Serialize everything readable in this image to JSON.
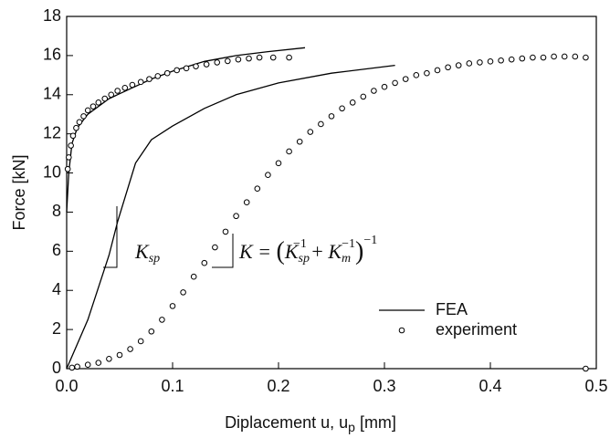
{
  "chart_data": {
    "type": "line",
    "xlabel": [
      "Diplacement u, u",
      "p",
      " [mm]"
    ],
    "ylabel": "Force [kN]",
    "xlim": [
      0,
      0.5
    ],
    "ylim": [
      0,
      18
    ],
    "xticks": [
      {
        "value": 0,
        "label": "0.0"
      },
      0.1,
      0.2,
      0.3,
      0.4,
      0.5
    ],
    "yticks": [
      0,
      2,
      4,
      6,
      8,
      10,
      12,
      14,
      16,
      18
    ],
    "legend": "lower right",
    "annotations": [
      [
        "K",
        "sp"
      ],
      [
        "K = ",
        "(",
        "K",
        "sp",
        "−1",
        " + ",
        "K",
        "m",
        "−1",
        ")",
        "−1"
      ]
    ],
    "series": [
      {
        "name": "FEA",
        "color": "#000000",
        "mode": "line",
        "x": [
          0,
          0.002,
          0.005,
          0.01,
          0.02,
          0.04,
          0.06,
          0.08,
          0.1,
          0.13,
          0.16,
          0.19,
          0.225,
          null,
          0,
          0.02,
          0.04,
          0.048,
          0.065,
          0.08,
          0.1,
          0.13,
          0.16,
          0.2,
          0.25,
          0.31
        ],
        "values": [
          8,
          10,
          11.5,
          12.3,
          13,
          13.8,
          14.3,
          14.8,
          15.2,
          15.7,
          16.0,
          16.2,
          16.4,
          null,
          0,
          2.5,
          5.8,
          7.5,
          10.5,
          11.7,
          12.4,
          13.3,
          14,
          14.6,
          15.1,
          15.5
        ]
      },
      {
        "name": "experiment",
        "color": "#000000",
        "mode": "markers",
        "x": [
          0.001,
          0.002,
          0.004,
          0.006,
          0.009,
          0.012,
          0.016,
          0.02,
          0.025,
          0.03,
          0.036,
          0.042,
          0.048,
          0.055,
          0.062,
          0.07,
          0.078,
          0.086,
          0.095,
          0.104,
          0.113,
          0.122,
          0.132,
          0.142,
          0.152,
          0.162,
          0.172,
          0.182,
          0.195,
          0.21,
          0.005,
          0.01,
          0.02,
          0.03,
          0.04,
          0.05,
          0.06,
          0.07,
          0.08,
          0.09,
          0.1,
          0.11,
          0.12,
          0.13,
          0.14,
          0.15,
          0.16,
          0.17,
          0.18,
          0.19,
          0.2,
          0.21,
          0.22,
          0.23,
          0.24,
          0.25,
          0.26,
          0.27,
          0.28,
          0.29,
          0.3,
          0.31,
          0.32,
          0.33,
          0.34,
          0.35,
          0.36,
          0.37,
          0.38,
          0.39,
          0.4,
          0.41,
          0.42,
          0.43,
          0.44,
          0.45,
          0.46,
          0.47,
          0.48,
          0.49,
          0.49
        ],
        "values": [
          10.2,
          10.8,
          11.4,
          11.9,
          12.3,
          12.6,
          12.9,
          13.2,
          13.4,
          13.6,
          13.8,
          14.0,
          14.2,
          14.35,
          14.5,
          14.65,
          14.8,
          14.95,
          15.1,
          15.25,
          15.35,
          15.45,
          15.55,
          15.65,
          15.72,
          15.8,
          15.85,
          15.9,
          15.9,
          15.9,
          0.05,
          0.1,
          0.2,
          0.3,
          0.5,
          0.7,
          1.0,
          1.4,
          1.9,
          2.5,
          3.2,
          3.9,
          4.7,
          5.4,
          6.2,
          7.0,
          7.8,
          8.5,
          9.2,
          9.9,
          10.5,
          11.1,
          11.6,
          12.1,
          12.5,
          12.9,
          13.3,
          13.6,
          13.9,
          14.2,
          14.4,
          14.6,
          14.8,
          15.0,
          15.1,
          15.25,
          15.4,
          15.5,
          15.6,
          15.65,
          15.7,
          15.75,
          15.8,
          15.85,
          15.9,
          15.9,
          15.95,
          15.95,
          15.95,
          15.9,
          0
        ]
      }
    ]
  }
}
